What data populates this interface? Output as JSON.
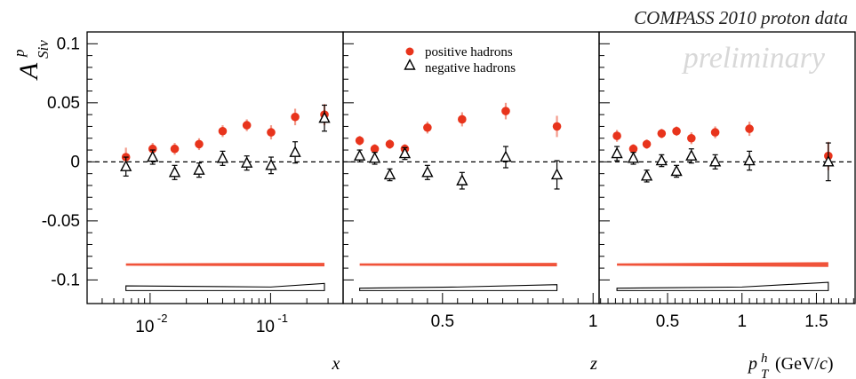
{
  "chart_data": {
    "type": "scatter",
    "title": "COMPASS 2010 proton data",
    "watermark": "preliminary",
    "ylabel": {
      "main": "A",
      "sup": "p",
      "sub": "Siv"
    },
    "ylim": [
      -0.12,
      0.11
    ],
    "yticks": [
      0.1,
      0.05,
      0,
      -0.05,
      -0.1
    ],
    "ytick_labels": [
      "0.1",
      "0.05",
      "0",
      "-0.05",
      "-0.1"
    ],
    "zero_line": "dashed",
    "colors": {
      "positive": "#e8341c",
      "positive_band": "#f0533a",
      "negative": "#000000"
    },
    "legend": {
      "placement": "top-center of middle panel",
      "entries": [
        {
          "name": "positive hadrons",
          "marker": "filled-circle"
        },
        {
          "name": "negative hadrons",
          "marker": "open-triangle"
        }
      ]
    },
    "panels": [
      {
        "xlabel": "x",
        "xscale": "log",
        "xlim": [
          0.003,
          0.4
        ],
        "xtick_labels": [
          {
            "value": 0.01,
            "base": "10",
            "exp": "-2"
          },
          {
            "value": 0.1,
            "base": "10",
            "exp": "-1"
          }
        ],
        "series": [
          {
            "name": "positive hadrons",
            "x": [
              0.0063,
              0.0105,
              0.016,
              0.0255,
              0.04,
              0.0635,
              0.101,
              0.16,
              0.28
            ],
            "y": [
              0.004,
              0.011,
              0.011,
              0.015,
              0.026,
              0.031,
              0.025,
              0.038,
              0.04
            ],
            "err": [
              0.008,
              0.005,
              0.005,
              0.005,
              0.005,
              0.005,
              0.006,
              0.007,
              0.009
            ]
          },
          {
            "name": "negative hadrons",
            "x": [
              0.0063,
              0.0105,
              0.016,
              0.0255,
              0.04,
              0.0635,
              0.101,
              0.16,
              0.28
            ],
            "y": [
              -0.004,
              0.004,
              -0.009,
              -0.007,
              0.003,
              -0.001,
              -0.003,
              0.008,
              0.037
            ],
            "err": [
              0.008,
              0.006,
              0.006,
              0.006,
              0.006,
              0.006,
              0.007,
              0.009,
              0.011
            ]
          }
        ],
        "positive_band": {
          "x": [
            0.0063,
            0.28
          ],
          "y": [
            -0.087,
            -0.087
          ],
          "width": [
            0.002,
            0.003
          ]
        },
        "systematic_band": {
          "x": [
            0.0063,
            0.1,
            0.28
          ],
          "low": [
            -0.109,
            -0.109,
            -0.109
          ],
          "high": [
            -0.105,
            -0.106,
            -0.103
          ]
        }
      },
      {
        "xlabel": "z",
        "xscale": "linear",
        "xlim": [
          0.17,
          1.02
        ],
        "xtick_labels": [
          {
            "value": 0.5,
            "label": "0.5"
          },
          {
            "value": 1,
            "label": "1"
          }
        ],
        "series": [
          {
            "name": "positive hadrons",
            "x": [
              0.225,
              0.275,
              0.325,
              0.375,
              0.45,
              0.565,
              0.71,
              0.88
            ],
            "y": [
              0.018,
              0.011,
              0.015,
              0.011,
              0.029,
              0.036,
              0.043,
              0.03
            ],
            "err": [
              0.004,
              0.004,
              0.004,
              0.004,
              0.005,
              0.006,
              0.007,
              0.009
            ]
          },
          {
            "name": "negative hadrons",
            "x": [
              0.225,
              0.275,
              0.325,
              0.375,
              0.45,
              0.565,
              0.71,
              0.88
            ],
            "y": [
              0.005,
              0.003,
              -0.011,
              0.007,
              -0.009,
              -0.016,
              0.004,
              -0.011
            ],
            "err": [
              0.005,
              0.005,
              0.005,
              0.005,
              0.006,
              0.007,
              0.009,
              0.012
            ]
          }
        ],
        "positive_band": {
          "x": [
            0.225,
            0.88
          ],
          "y": [
            -0.087,
            -0.087
          ],
          "width": [
            0.002,
            0.003
          ]
        },
        "systematic_band": {
          "x": [
            0.225,
            0.55,
            0.88
          ],
          "low": [
            -0.109,
            -0.109,
            -0.109
          ],
          "high": [
            -0.107,
            -0.106,
            -0.104
          ]
        }
      },
      {
        "xlabel": "p_T^h",
        "xlabel_unit": "(GeV/c)",
        "xscale": "linear",
        "xlim": [
          0.04,
          1.76
        ],
        "xtick_labels": [
          {
            "value": 0.5,
            "label": "0.5"
          },
          {
            "value": 1,
            "label": "1"
          },
          {
            "value": 1.5,
            "label": "1.5"
          }
        ],
        "series": [
          {
            "name": "positive hadrons",
            "x": [
              0.16,
              0.27,
              0.36,
              0.46,
              0.56,
              0.66,
              0.82,
              1.05,
              1.58
            ],
            "y": [
              0.022,
              0.011,
              0.015,
              0.024,
              0.026,
              0.02,
              0.025,
              0.028,
              0.005
            ],
            "err": [
              0.005,
              0.004,
              0.004,
              0.004,
              0.004,
              0.005,
              0.005,
              0.006,
              0.012
            ]
          },
          {
            "name": "negative hadrons",
            "x": [
              0.16,
              0.27,
              0.36,
              0.46,
              0.56,
              0.66,
              0.82,
              1.05,
              1.58
            ],
            "y": [
              0.007,
              0.003,
              -0.012,
              0.001,
              -0.008,
              0.005,
              0.0,
              0.001,
              0.0
            ],
            "err": [
              0.006,
              0.005,
              0.005,
              0.005,
              0.005,
              0.006,
              0.006,
              0.008,
              0.016
            ]
          }
        ],
        "positive_band": {
          "x": [
            0.16,
            1.58
          ],
          "y": [
            -0.087,
            -0.087
          ],
          "width": [
            0.002,
            0.004
          ]
        },
        "systematic_band": {
          "x": [
            0.16,
            1.0,
            1.58
          ],
          "low": [
            -0.109,
            -0.109,
            -0.109
          ],
          "high": [
            -0.107,
            -0.106,
            -0.102
          ]
        }
      }
    ]
  }
}
